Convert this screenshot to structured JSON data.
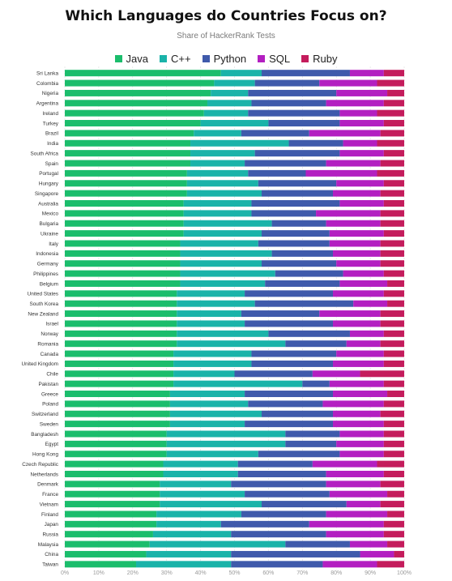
{
  "chart_data": {
    "type": "bar",
    "orientation": "horizontal",
    "stacked": true,
    "title": "Which Languages do Countries Focus on?",
    "subtitle": "Share of HackerRank Tests",
    "xlim": [
      0,
      100
    ],
    "xticks": [
      "0%",
      "10%",
      "20%",
      "30%",
      "40%",
      "50%",
      "60%",
      "70%",
      "80%",
      "90%",
      "100%"
    ],
    "grid": true,
    "legend_position": "top",
    "categories": [
      "Sri Lanka",
      "Colombia",
      "Nigeria",
      "Argentina",
      "Ireland",
      "Turkey",
      "Brazil",
      "India",
      "South Africa",
      "Spain",
      "Portugal",
      "Hungary",
      "Singapore",
      "Australia",
      "Mexico",
      "Bulgaria",
      "Ukraine",
      "Italy",
      "Indonesia",
      "Germany",
      "Philippines",
      "Belgium",
      "United States",
      "South Korea",
      "New Zealand",
      "Israel",
      "Norway",
      "Romania",
      "Canada",
      "United Kingdom",
      "Chile",
      "Pakistan",
      "Greece",
      "Poland",
      "Switzerland",
      "Sweden",
      "Bangladesh",
      "Egypt",
      "Hong Kong",
      "Czech Republic",
      "Netherlands",
      "Denmark",
      "France",
      "Vietnam",
      "Finland",
      "Japan",
      "Russia",
      "Malaysia",
      "China",
      "Taiwan"
    ],
    "series": [
      {
        "name": "Java",
        "color": "#1bbd6c",
        "values": [
          46,
          44,
          43,
          42,
          41,
          40,
          38,
          37,
          37,
          37,
          36,
          36,
          36,
          35,
          35,
          35,
          35,
          34,
          34,
          34,
          34,
          34,
          33,
          33,
          33,
          33,
          33,
          33,
          32,
          32,
          32,
          32,
          31,
          31,
          31,
          31,
          30,
          30,
          30,
          29,
          29,
          28,
          28,
          28,
          27,
          27,
          26,
          25,
          24,
          21
        ]
      },
      {
        "name": "C++",
        "color": "#1ab3a9",
        "values": [
          12,
          12,
          11,
          13,
          13,
          20,
          14,
          29,
          19,
          16,
          18,
          21,
          22,
          20,
          20,
          26,
          23,
          23,
          27,
          24,
          28,
          25,
          20,
          23,
          19,
          20,
          27,
          32,
          23,
          23,
          18,
          38,
          22,
          23,
          27,
          22,
          35,
          35,
          27,
          22,
          22,
          21,
          25,
          30,
          25,
          19,
          23,
          40,
          25,
          28
        ]
      },
      {
        "name": "Python",
        "color": "#3f5aab",
        "values": [
          26,
          19,
          26,
          22,
          27,
          21,
          20,
          16,
          25,
          24,
          17,
          23,
          21,
          26,
          19,
          16,
          20,
          21,
          18,
          22,
          20,
          22,
          26,
          29,
          23,
          26,
          24,
          18,
          25,
          24,
          23,
          8,
          26,
          22,
          21,
          26,
          16,
          15,
          24,
          22,
          26,
          28,
          25,
          25,
          25,
          26,
          28,
          19,
          38,
          27
        ]
      },
      {
        "name": "SQL",
        "color": "#b31fc1",
        "values": [
          10,
          17,
          15,
          17,
          11,
          13,
          21,
          10,
          13,
          16,
          21,
          14,
          14,
          13,
          19,
          16,
          16,
          15,
          14,
          13,
          12,
          14,
          15,
          10,
          18,
          14,
          10,
          10,
          14,
          15,
          14,
          16,
          16,
          18,
          14,
          15,
          13,
          14,
          13,
          19,
          17,
          16,
          17,
          10,
          18,
          22,
          17,
          11,
          10,
          16
        ]
      },
      {
        "name": "Ruby",
        "color": "#c41c5c",
        "values": [
          6,
          8,
          5,
          6,
          8,
          6,
          7,
          8,
          6,
          7,
          8,
          6,
          7,
          6,
          7,
          7,
          6,
          7,
          7,
          7,
          6,
          5,
          6,
          5,
          7,
          7,
          6,
          7,
          6,
          6,
          13,
          6,
          5,
          6,
          7,
          6,
          6,
          6,
          6,
          8,
          6,
          7,
          5,
          7,
          5,
          6,
          6,
          5,
          3,
          8
        ]
      }
    ]
  }
}
